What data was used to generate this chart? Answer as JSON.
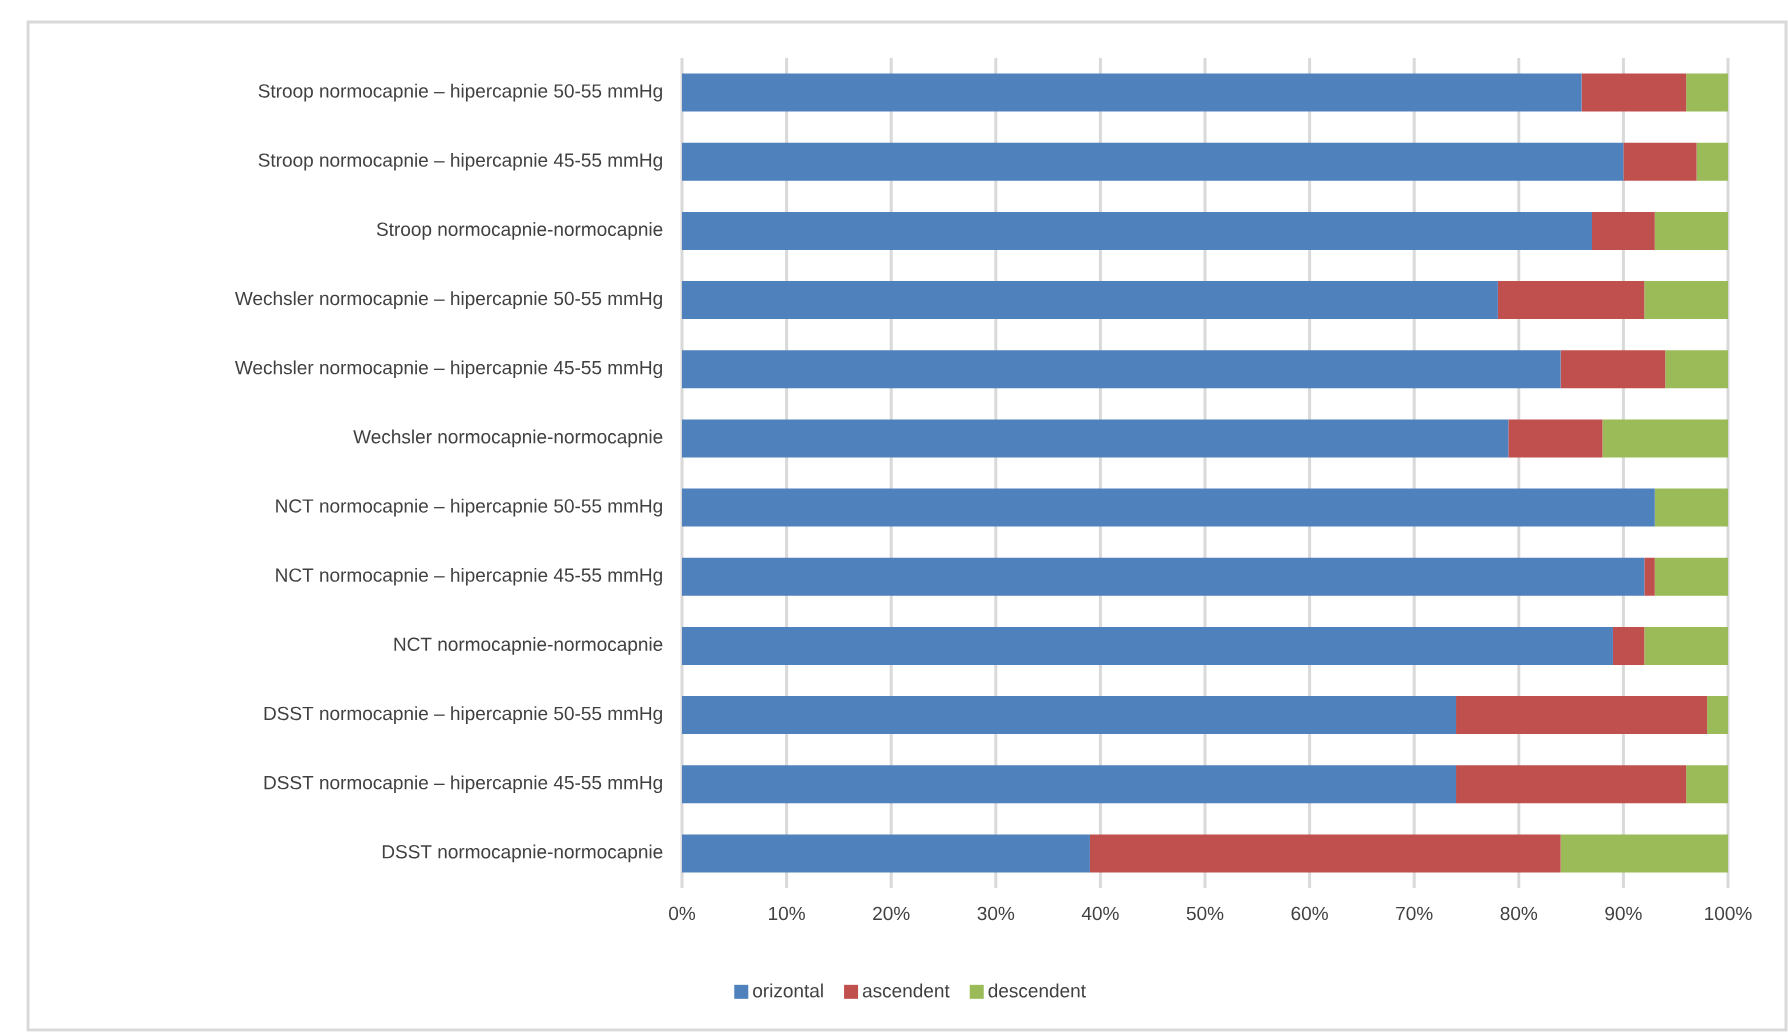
{
  "chart_data": {
    "type": "bar",
    "orientation": "horizontal",
    "stacked": true,
    "categories": [
      "Stroop normocapnie – hipercapnie 50-55 mmHg",
      "Stroop normocapnie – hipercapnie 45-55 mmHg",
      "Stroop normocapnie-normocapnie",
      "Wechsler normocapnie – hipercapnie 50-55 mmHg",
      "Wechsler normocapnie – hipercapnie 45-55 mmHg",
      "Wechsler normocapnie-normocapnie",
      "NCT normocapnie – hipercapnie 50-55 mmHg",
      "NCT normocapnie – hipercapnie 45-55 mmHg",
      "NCT normocapnie-normocapnie",
      "DSST normocapnie – hipercapnie 50-55 mmHg",
      "DSST normocapnie – hipercapnie 45-55 mmHg",
      "DSST normocapnie-normocapnie"
    ],
    "series": [
      {
        "name": "orizontal",
        "color": "#4f81bd",
        "values": [
          86,
          90,
          87,
          78,
          84,
          79,
          93,
          92,
          89,
          74,
          74,
          39
        ]
      },
      {
        "name": "ascendent",
        "color": "#c0504d",
        "values": [
          10,
          7,
          6,
          14,
          10,
          9,
          0,
          1,
          3,
          24,
          22,
          45
        ]
      },
      {
        "name": "descendent",
        "color": "#9bbb59",
        "values": [
          4,
          3,
          7,
          8,
          6,
          12,
          7,
          7,
          8,
          2,
          4,
          16
        ]
      }
    ],
    "xlim": [
      0,
      100
    ],
    "xticks": [
      {
        "value": 0,
        "label": "0%"
      },
      {
        "value": 10,
        "label": "10%"
      },
      {
        "value": 20,
        "label": "20%"
      },
      {
        "value": 30,
        "label": "30%"
      },
      {
        "value": 40,
        "label": "40%"
      },
      {
        "value": 50,
        "label": "50%"
      },
      {
        "value": 60,
        "label": "60%"
      },
      {
        "value": 70,
        "label": "70%"
      },
      {
        "value": 80,
        "label": "80%"
      },
      {
        "value": 90,
        "label": "90%"
      },
      {
        "value": 100,
        "label": "100%"
      }
    ],
    "grid": "x",
    "legend": "bottom"
  }
}
